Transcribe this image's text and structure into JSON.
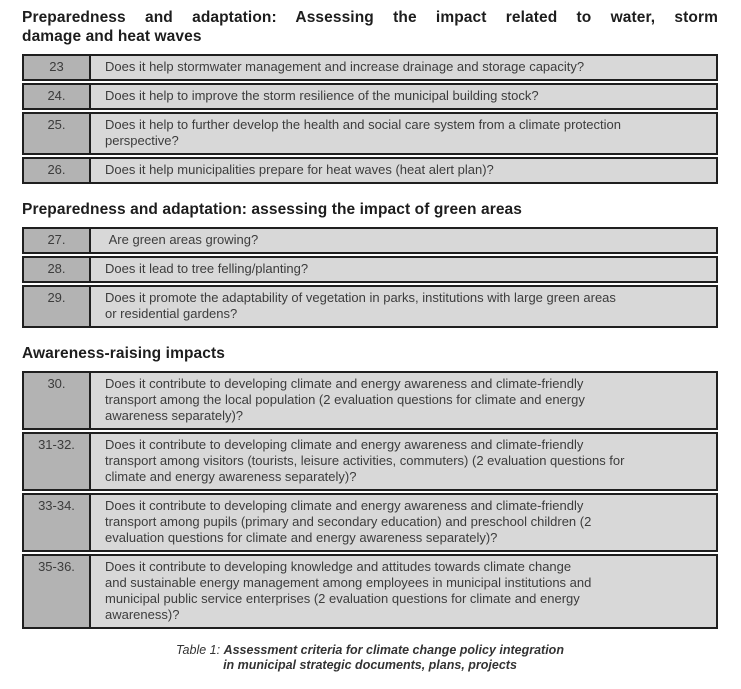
{
  "document": {
    "sections": [
      {
        "title_lines": [
          "Preparedness and adaptation: Assessing the impact related to water, storm",
          "damage and heat waves"
        ],
        "rows": [
          {
            "num": "23",
            "text": "Does it help stormwater management and increase drainage and storage capacity?"
          },
          {
            "num": "24.",
            "text": "Does it help to improve the storm resilience of the municipal building stock?"
          },
          {
            "num": "25.",
            "text": "Does it help to further develop the health and social care system from a climate protection\nperspective?"
          },
          {
            "num": "26.",
            "text": "Does it help municipalities prepare for heat waves (heat alert plan)?"
          }
        ]
      },
      {
        "title_lines": [
          "Preparedness and adaptation: assessing the impact of green areas"
        ],
        "rows": [
          {
            "num": "27.",
            "text": " Are green areas growing?"
          },
          {
            "num": "28.",
            "text": "Does it lead to tree felling/planting?"
          },
          {
            "num": "29.",
            "text": "Does it promote the adaptability of vegetation in parks, institutions with large green areas\nor residential gardens?"
          }
        ]
      },
      {
        "title_lines": [
          "Awareness-raising impacts"
        ],
        "rows": [
          {
            "num": "30.",
            "text": "Does it contribute to developing climate and energy awareness and climate-friendly\ntransport among the local population (2 evaluation questions for climate and energy\nawareness separately)?"
          },
          {
            "num": "31-32.",
            "text": "Does it contribute to developing climate and energy awareness and climate-friendly\ntransport among visitors (tourists, leisure activities, commuters) (2 evaluation questions for\nclimate and energy awareness separately)?"
          },
          {
            "num": "33-34.",
            "text": "Does it contribute to developing climate and energy awareness and climate-friendly\ntransport among pupils (primary and secondary education) and preschool children (2\nevaluation questions for climate and energy awareness separately)?"
          },
          {
            "num": "35-36.",
            "text": "Does it contribute to developing knowledge and attitudes towards climate change\nand sustainable energy management among employees in municipal institutions and\nmunicipal public service enterprises (2 evaluation questions for climate and energy\nawareness)?"
          }
        ]
      }
    ],
    "caption": {
      "prefix": "Table 1:",
      "text": "Assessment criteria for climate change policy integration\nin municipal strategic documents, plans, projects"
    },
    "colors": {
      "border": "#1f1f1f",
      "number_cell_bg": "#b3b3b3",
      "question_cell_bg": "#d8d8d8",
      "heading_text": "#1d1d1d",
      "cell_text": "#3c3c3c",
      "page_bg": "#ffffff"
    }
  }
}
